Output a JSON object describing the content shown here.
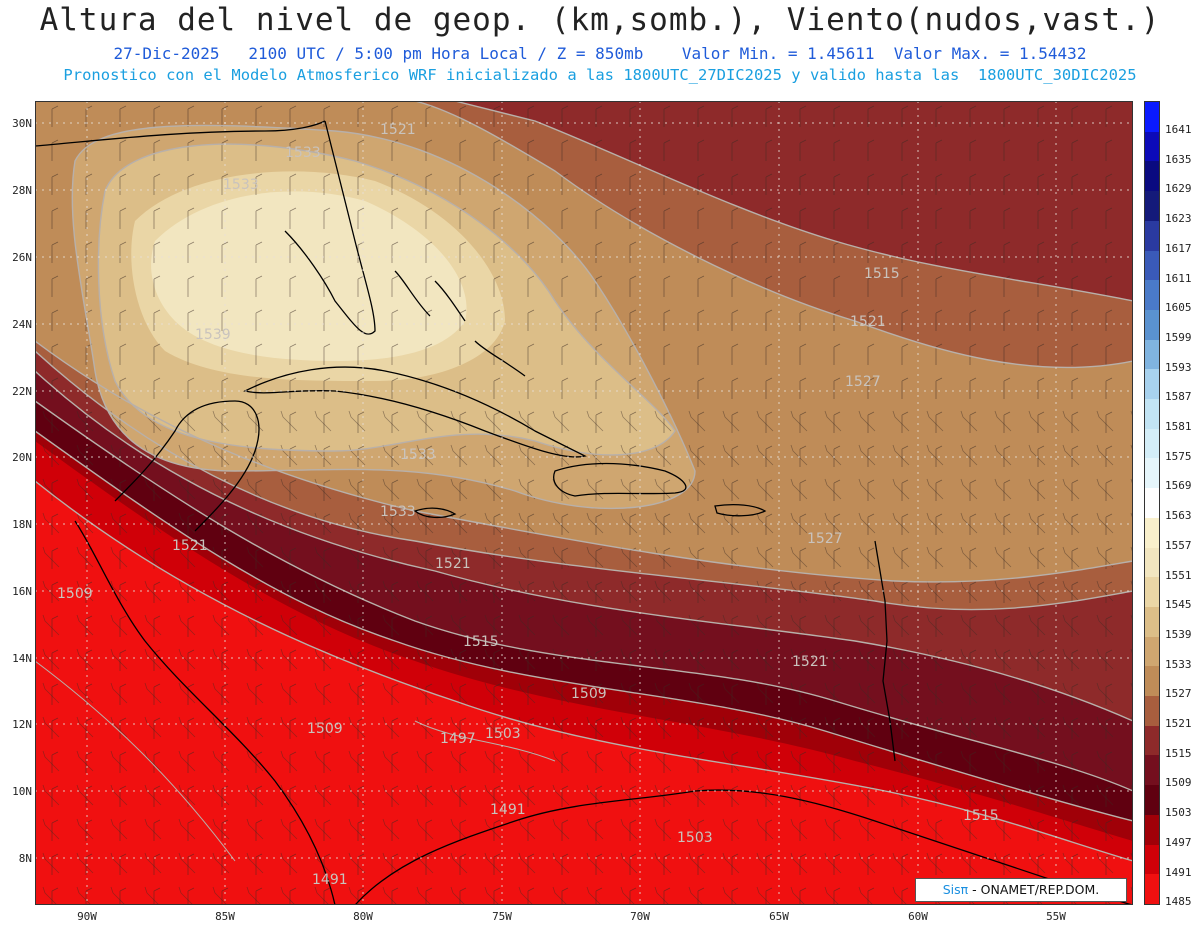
{
  "title": "Altura del nivel de geop. (km,somb.), Viento(nudos,vast.)",
  "subtitle1": "27-Dic-2025   2100 UTC / 5:00 pm Hora Local / Z = 850mb    Valor Min. = 1.45611  Valor Max. = 1.54432",
  "subtitle2": "Pronostico con el Modelo Atmosferico WRF inicializado a las 1800UTC_27DIC2025 y valido hasta las  1800UTC_30DIC2025",
  "credit": {
    "brand": "Sisπ",
    "text": " - ONAMET/REP.DOM."
  },
  "axes": {
    "lat_ticks": [
      "30N",
      "28N",
      "26N",
      "24N",
      "22N",
      "20N",
      "18N",
      "16N",
      "14N",
      "12N",
      "10N",
      "8N"
    ],
    "lon_ticks": [
      "90W",
      "85W",
      "80W",
      "75W",
      "70W",
      "65W",
      "60W",
      "55W"
    ]
  },
  "colorbar": {
    "levels": [
      "1641",
      "1635",
      "1629",
      "1623",
      "1617",
      "1611",
      "1605",
      "1599",
      "1593",
      "1587",
      "1581",
      "1575",
      "1569",
      "1563",
      "1557",
      "1551",
      "1545",
      "1539",
      "1533",
      "1527",
      "1521",
      "1515",
      "1509",
      "1503",
      "1497",
      "1491",
      "1485"
    ],
    "colors": [
      "#0a1aff",
      "#0c0ab8",
      "#0a0a80",
      "#141a7a",
      "#2a3aa0",
      "#3a5ab8",
      "#4a7ac8",
      "#5a92d0",
      "#80b4e0",
      "#a8d2ee",
      "#c2e4f4",
      "#d4eef8",
      "#e6f6fb",
      "#ffffff",
      "#f9f0cc",
      "#f2e6c0",
      "#ead6a6",
      "#dcbe88",
      "#cfa670",
      "#bf8c58",
      "#a85e3e",
      "#8e2a2a",
      "#740f1e",
      "#600010",
      "#a00008",
      "#d00008",
      "#f01010"
    ]
  },
  "contour_labels": [
    "1521",
    "1533",
    "1533",
    "1539",
    "1533",
    "1515",
    "1521",
    "1527",
    "1533",
    "1521",
    "1509",
    "1521",
    "1515",
    "1509",
    "1503",
    "1509",
    "1497",
    "1491",
    "1503",
    "1491",
    "1527",
    "1521",
    "1515"
  ],
  "map_colors": {
    "low": "#f01010",
    "mid": "#8e2a2a",
    "high": "#f2e6c0",
    "coast": "#000000"
  }
}
